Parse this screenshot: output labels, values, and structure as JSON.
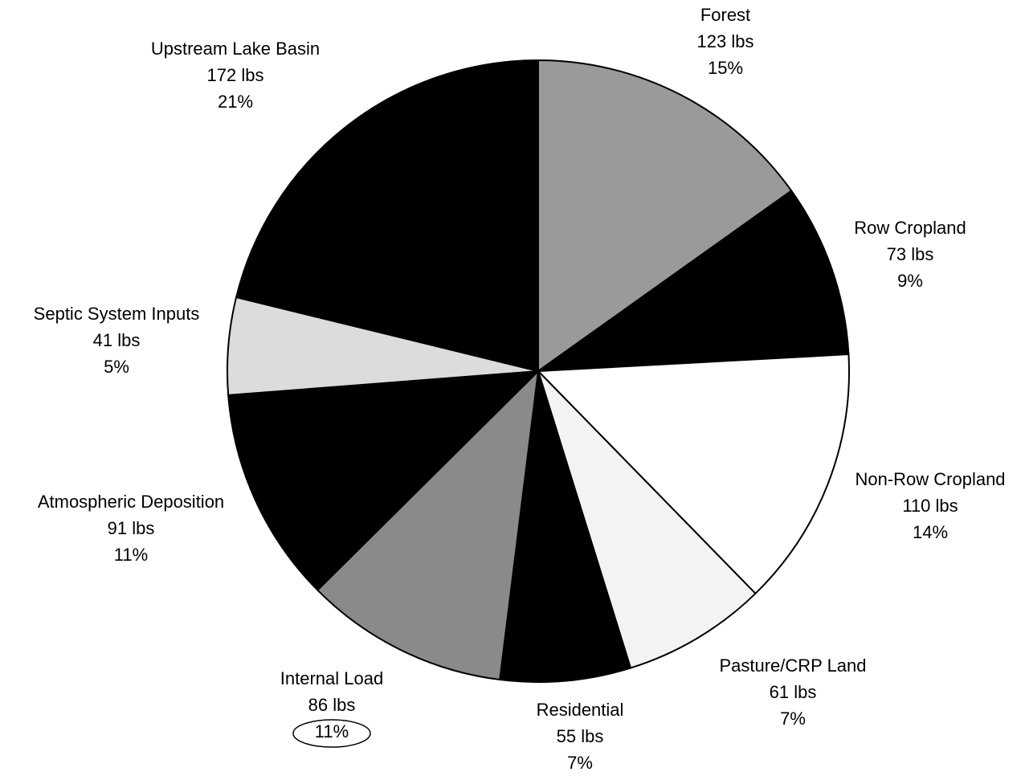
{
  "chart_data": {
    "type": "pie",
    "categories": [
      "Forest",
      "Row Cropland",
      "Non-Row Cropland",
      "Pasture/CRP Land",
      "Residential",
      "Internal Load",
      "Atmospheric Deposition",
      "Septic System Inputs",
      "Upstream Lake Basin"
    ],
    "values": [
      123,
      73,
      110,
      61,
      55,
      86,
      91,
      41,
      172
    ],
    "value_labels": [
      "123 lbs",
      "73 lbs",
      "110 lbs",
      "61 lbs",
      "55 lbs",
      "86 lbs",
      "91 lbs",
      "41 lbs",
      "172 lbs"
    ],
    "percent_labels": [
      "15%",
      "9%",
      "14%",
      "7%",
      "7%",
      "11%",
      "11%",
      "5%",
      "21%"
    ],
    "colors": [
      "#9a9a9a",
      "#000000",
      "#ffffff",
      "#f3f3f3",
      "#000000",
      "#8a8a8a",
      "#000000",
      "#dcdcdc",
      "#000000"
    ]
  }
}
